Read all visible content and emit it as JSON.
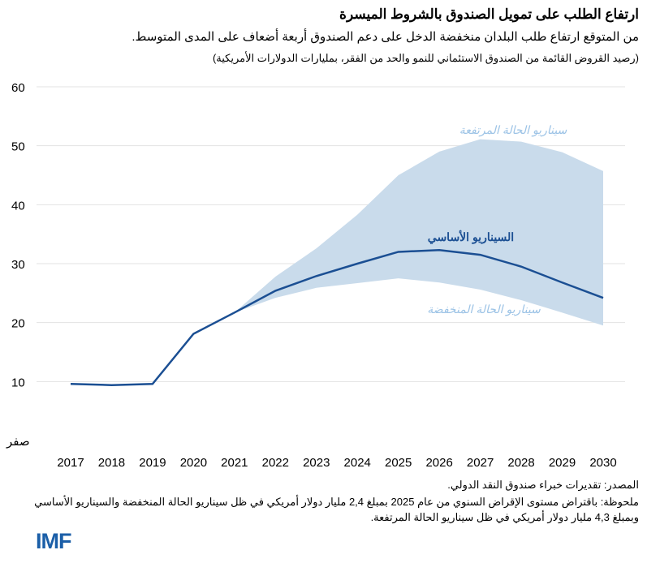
{
  "title": "ارتفاع الطلب على تمويل الصندوق بالشروط الميسرة",
  "subtitle": "من المتوقع ارتفاع طلب البلدان منخفضة الدخل على دعم الصندوق أربعة أضعاف على المدى المتوسط.",
  "units": "(رصيد القروض القائمة من الصندوق الاستئماني للنمو والحد من الفقر، بمليارات الدولارات الأمريكية)",
  "source": "المصدر: تقديرات خبراء صندوق النقد الدولي.",
  "note": "ملحوظة: باقتراض مستوى الإقراض السنوي من عام 2025 بمبلغ 2,4 مليار دولار أمريكي في ظل سيناريو الحالة المنخفضة والسيناريو الأساسي وبمبلغ 4,3 مليار دولار أمريكي في ظل سيناريو الحالة المرتفعة.",
  "logo": "IMF",
  "colors": {
    "baseline": "#1b4f93",
    "band": "#c9dbeb",
    "band_label": "#9cc3e6",
    "grid": "#e3e3e3"
  },
  "chart_data": {
    "type": "area",
    "x": [
      2017,
      2018,
      2019,
      2020,
      2021,
      2022,
      2023,
      2024,
      2025,
      2026,
      2027,
      2028,
      2029,
      2030
    ],
    "x_tick_labels": [
      "2017",
      "2018",
      "2019",
      "2020",
      "2021",
      "2022",
      "2023",
      "2024",
      "2025",
      "2026",
      "2027",
      "2028",
      "2029",
      "2030"
    ],
    "ylim": [
      0,
      60
    ],
    "y_ticks": [
      0,
      10,
      20,
      30,
      40,
      50,
      60
    ],
    "y_tick_labels": [
      "صفر",
      "10",
      "20",
      "30",
      "40",
      "50",
      "60"
    ],
    "grid": true,
    "series": [
      {
        "name": "السيناريو الأساسي",
        "type": "line",
        "values": [
          9.6,
          9.4,
          9.6,
          18.1,
          21.7,
          25.4,
          27.9,
          30.0,
          32.0,
          32.3,
          31.5,
          29.5,
          26.8,
          24.2
        ]
      },
      {
        "name": "سيناريو الحالة المرتفعة",
        "type": "band-upper",
        "values": [
          null,
          null,
          null,
          null,
          21.7,
          27.8,
          32.6,
          38.3,
          45.0,
          49.0,
          51.1,
          50.7,
          48.9,
          45.7
        ]
      },
      {
        "name": "سيناريو الحالة المنخفضة",
        "type": "band-lower",
        "values": [
          null,
          null,
          null,
          null,
          21.7,
          24.2,
          25.9,
          26.7,
          27.5,
          26.8,
          25.6,
          23.8,
          21.7,
          19.5
        ]
      }
    ]
  }
}
